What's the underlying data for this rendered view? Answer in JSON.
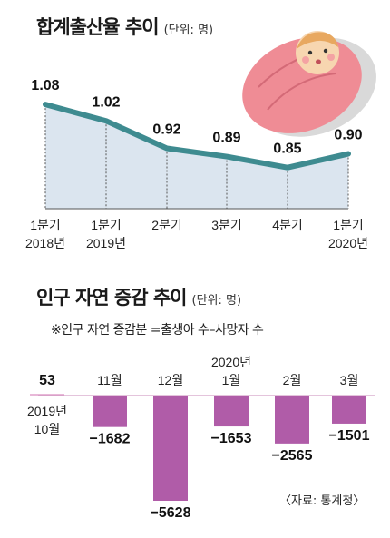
{
  "chart1_title": "합계출산율 추이",
  "chart1_unit": "(단위: 명)",
  "chart2_title": "인구 자연 증감 추이",
  "chart2_unit": "(단위: 명)",
  "chart2_note": "※인구 자연 증감분 =출생아 수–사망자 수",
  "source": "〈자료: 통계청〉",
  "colors": {
    "line": "#3e8b90",
    "area": "#dbe5ef",
    "bar": "#b05ca8",
    "baseline": "#e8b8d8"
  },
  "chart_data": [
    {
      "type": "area",
      "title": "합계출산율 추이",
      "unit": "(단위: 명)",
      "categories": [
        "1분기\n2018년",
        "1분기\n2019년",
        "2분기",
        "3분기",
        "4분기",
        "1분기\n2020년"
      ],
      "values": [
        1.08,
        1.02,
        0.92,
        0.89,
        0.85,
        0.9
      ],
      "value_labels": [
        "1.08",
        "1.02",
        "0.92",
        "0.89",
        "0.85",
        "0.90"
      ],
      "ylim": [
        0.7,
        1.15
      ]
    },
    {
      "type": "bar",
      "title": "인구 자연 증감 추이",
      "unit": "(단위: 명)",
      "categories": [
        "2019년\n10월",
        "11월",
        "12월",
        "2020년\n1월",
        "2월",
        "3월"
      ],
      "values": [
        53,
        -1682,
        -5628,
        -1653,
        -2565,
        -1501
      ],
      "value_labels": [
        "53",
        "−1682",
        "−5628",
        "−1653",
        "−2565",
        "−1501"
      ]
    }
  ]
}
